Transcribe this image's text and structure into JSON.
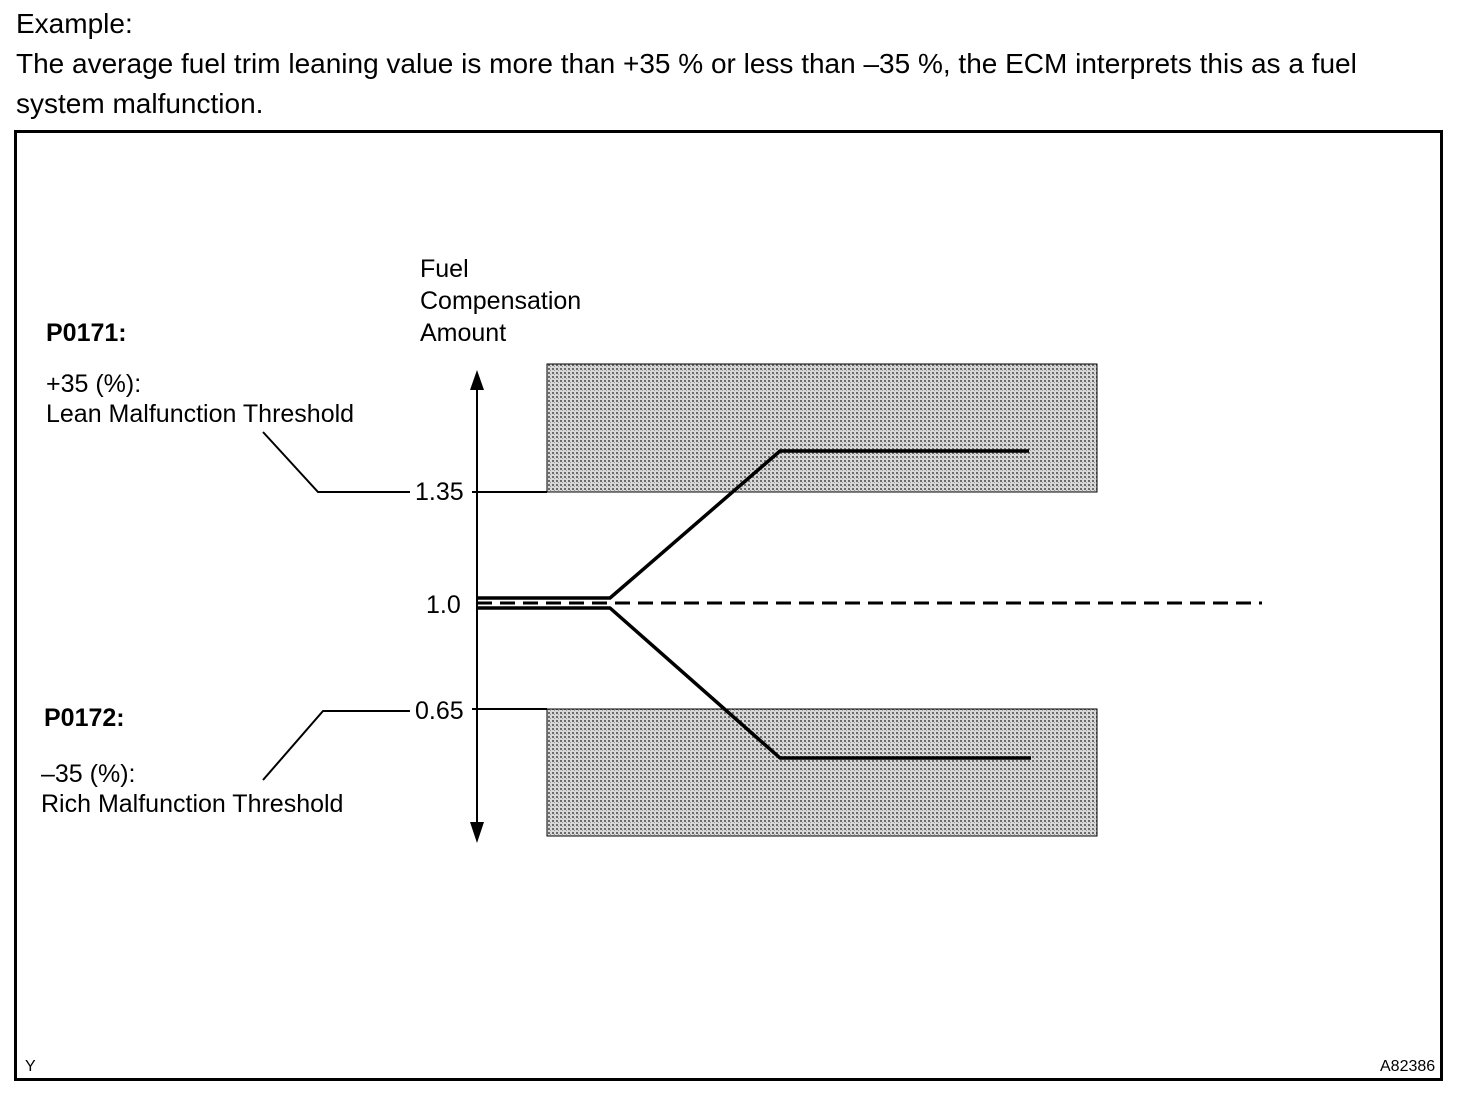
{
  "intro": {
    "heading": "Example:",
    "line1": "The average fuel trim leaning value is more than +35 % or less than –35 %, the ECM interprets this as a fuel",
    "line2": "system malfunction."
  },
  "diagram": {
    "axis_title": [
      "Fuel",
      "Compensation",
      "Amount"
    ],
    "ticks": {
      "upper": "1.35",
      "middle": "1.0",
      "lower": "0.65"
    },
    "p0171": {
      "code": "P0171:",
      "value": "+35 (%):",
      "desc": "Lean Malfunction Threshold"
    },
    "p0172": {
      "code": "P0172:",
      "value": "–35 (%):",
      "desc": "Rich Malfunction Threshold"
    },
    "corner_left": "Y",
    "corner_right": "A82386"
  }
}
